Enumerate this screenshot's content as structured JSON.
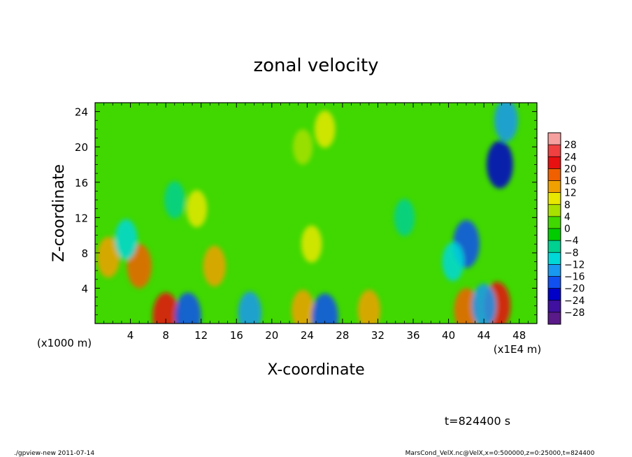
{
  "chart_data": {
    "type": "heatmap",
    "title": "zonal velocity",
    "xlabel": "X-coordinate",
    "ylabel": "Z-coordinate",
    "x_unit_note": "(x1E4 m)",
    "y_unit_note": "(x1000 m)",
    "xlim": [
      0,
      50
    ],
    "ylim": [
      0,
      25
    ],
    "x_ticks": [
      4,
      8,
      12,
      16,
      20,
      24,
      28,
      32,
      36,
      40,
      44,
      48
    ],
    "y_ticks": [
      4,
      8,
      12,
      16,
      20,
      24
    ],
    "x_tick_labels": [
      "4",
      "8",
      "12",
      "16",
      "20",
      "24",
      "28",
      "32",
      "36",
      "40",
      "44",
      "48"
    ],
    "y_tick_labels": [
      "4",
      "8",
      "12",
      "16",
      "20",
      "24"
    ],
    "colorbar": {
      "levels": [
        28,
        24,
        20,
        16,
        12,
        8,
        4,
        0,
        -4,
        -8,
        -12,
        -16,
        -20,
        -24,
        -28
      ],
      "labels": [
        "28",
        "24",
        "20",
        "16",
        "12",
        "8",
        "4",
        "0",
        "−4",
        "−8",
        "−12",
        "−16",
        "−20",
        "−24",
        "−28"
      ],
      "colors": [
        "#f6a0a0",
        "#f04040",
        "#e81010",
        "#f06000",
        "#f0a000",
        "#e8e800",
        "#a8e000",
        "#40d800",
        "#00cc00",
        "#00d090",
        "#00d8d8",
        "#1898f0",
        "#1050f0",
        "#0000c8",
        "#4010a0",
        "#5a1a8a"
      ]
    },
    "features": [
      {
        "x": 8,
        "z": 0.8,
        "value": 20
      },
      {
        "x": 45.5,
        "z": 2,
        "value": 20
      },
      {
        "x": 42,
        "z": 1.5,
        "value": 16
      },
      {
        "x": 5,
        "z": 6.5,
        "value": 16
      },
      {
        "x": 1.5,
        "z": 7.5,
        "value": 12
      },
      {
        "x": 13.5,
        "z": 6.5,
        "value": 12
      },
      {
        "x": 11.5,
        "z": 13,
        "value": 8
      },
      {
        "x": 23.5,
        "z": 1.5,
        "value": 12
      },
      {
        "x": 31,
        "z": 1.5,
        "value": 12
      },
      {
        "x": 24.5,
        "z": 9,
        "value": 8
      },
      {
        "x": 26,
        "z": 22,
        "value": 8
      },
      {
        "x": 23.5,
        "z": 20,
        "value": 6
      },
      {
        "x": 45.8,
        "z": 18,
        "value": -22
      },
      {
        "x": 42,
        "z": 9,
        "value": -20
      },
      {
        "x": 10.5,
        "z": 0.8,
        "value": -20
      },
      {
        "x": 26,
        "z": 0.7,
        "value": -20
      },
      {
        "x": 3.5,
        "z": 9.5,
        "value": -12
      },
      {
        "x": 46.5,
        "z": 23,
        "value": -14
      },
      {
        "x": 44,
        "z": 2,
        "value": -16
      },
      {
        "x": 17.5,
        "z": 1.2,
        "value": -14
      },
      {
        "x": 40.5,
        "z": 7,
        "value": -10
      },
      {
        "x": 9,
        "z": 14,
        "value": -8
      },
      {
        "x": 35,
        "z": 12,
        "value": -8
      }
    ]
  },
  "footer": {
    "time": "t=824400 s",
    "program": "./gpview-new  2011-07-14",
    "source": "MarsCond_VelX.nc@VelX,x=0:500000,z=0:25000,t=824400"
  }
}
